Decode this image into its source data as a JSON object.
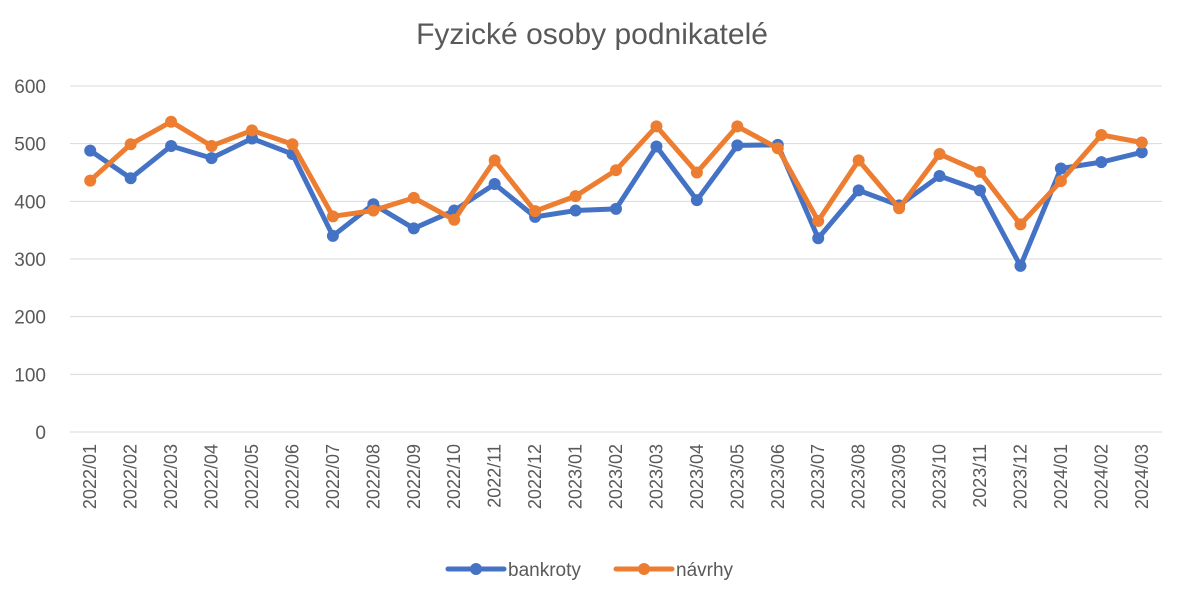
{
  "chart_data": {
    "type": "line",
    "title": "Fyzické osoby podnikatelé",
    "xlabel": "",
    "ylabel": "",
    "ylim": [
      0,
      600
    ],
    "yticks": [
      0,
      100,
      200,
      300,
      400,
      500,
      600
    ],
    "grid": true,
    "legend_position": "bottom",
    "x": [
      "2022/01",
      "2022/02",
      "2022/03",
      "2022/04",
      "2022/05",
      "2022/06",
      "2022/07",
      "2022/08",
      "2022/09",
      "2022/10",
      "2022/11",
      "2022/12",
      "2023/01",
      "2023/02",
      "2023/03",
      "2023/04",
      "2023/05",
      "2023/06",
      "2023/07",
      "2023/08",
      "2023/09",
      "2023/10",
      "2023/11",
      "2023/12",
      "2024/01",
      "2024/02",
      "2024/03"
    ],
    "series": [
      {
        "name": "bankroty",
        "color": "#4472C4",
        "values": [
          488,
          440,
          496,
          475,
          509,
          482,
          340,
          395,
          353,
          384,
          430,
          373,
          384,
          387,
          495,
          402,
          497,
          498,
          336,
          419,
          393,
          444,
          419,
          288,
          457,
          468,
          485
        ]
      },
      {
        "name": "návrhy",
        "color": "#ED7D31",
        "values": [
          436,
          499,
          538,
          496,
          523,
          499,
          374,
          384,
          406,
          368,
          471,
          383,
          409,
          454,
          530,
          450,
          530,
          492,
          366,
          471,
          388,
          482,
          451,
          360,
          435,
          515,
          502
        ]
      }
    ]
  }
}
